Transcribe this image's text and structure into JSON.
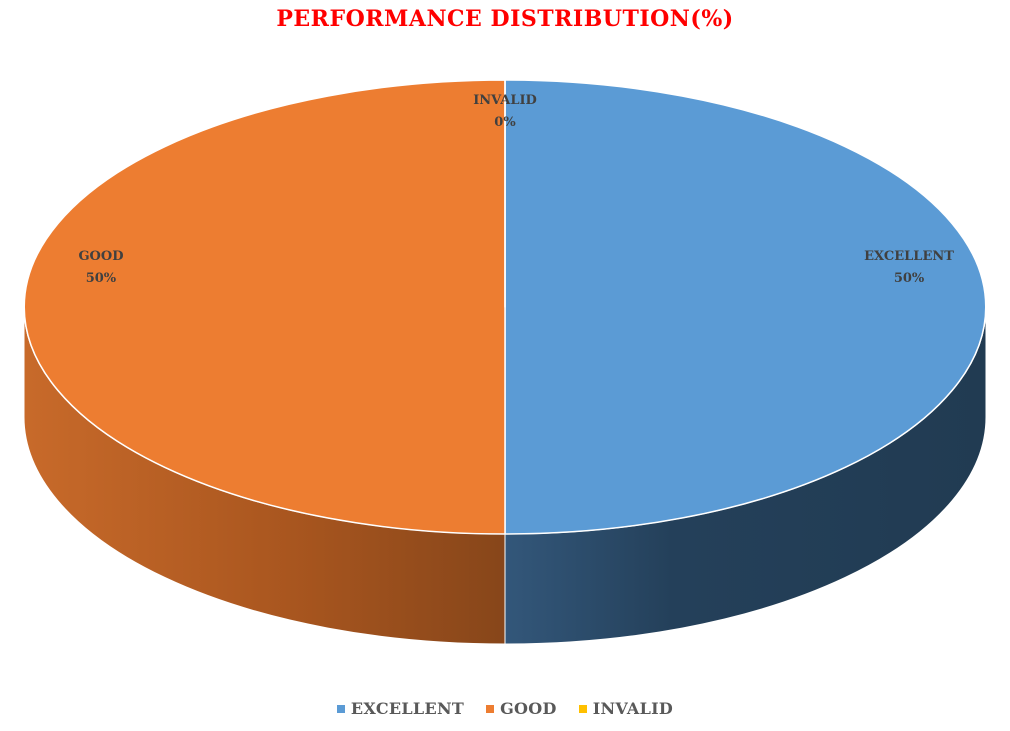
{
  "chart_data": {
    "type": "pie",
    "title": "PERFORMANCE DISTRIBUTION(%)",
    "categories": [
      "EXCELLENT",
      "GOOD",
      "INVALID"
    ],
    "values": [
      50,
      50,
      0
    ],
    "data_labels": [
      "50%",
      "50%",
      "0%"
    ],
    "colors": [
      "#5B9BD5",
      "#ED7D31",
      "#FFC000"
    ],
    "legend": "bottom",
    "style": "3d"
  },
  "title_color": "#FF0000"
}
